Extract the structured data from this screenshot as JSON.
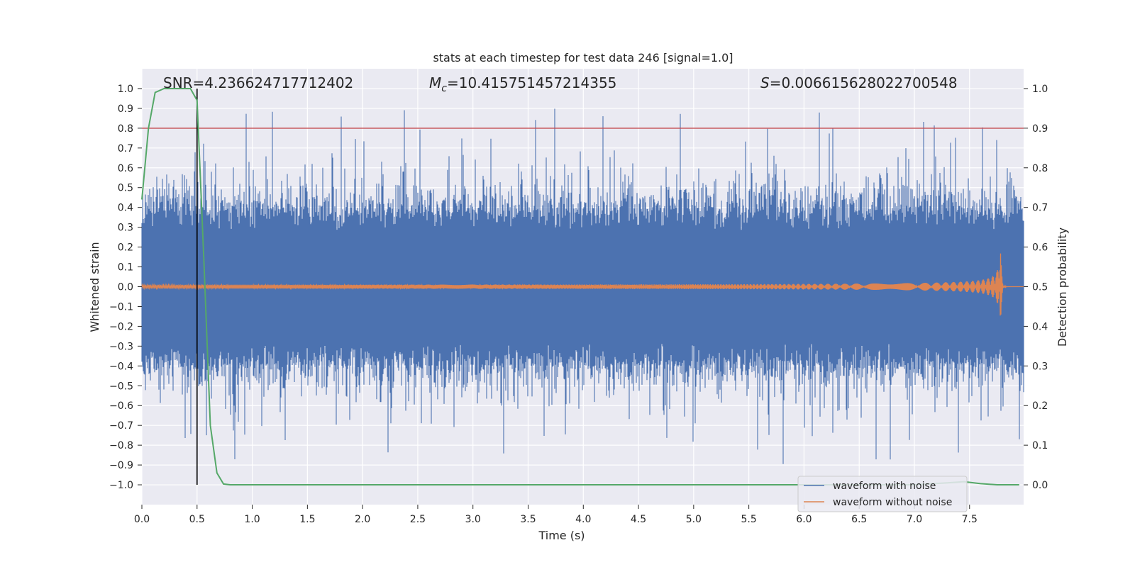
{
  "chart_data": {
    "type": "line",
    "title": "stats at each timestep for test data 246 [signal=1.0]",
    "xlabel": "Time (s)",
    "ylabel": "Whitened strain",
    "y2label": "Detection probability",
    "xlim": [
      0.0,
      7.99
    ],
    "ylim": [
      -1.1,
      1.1
    ],
    "y2lim": [
      -0.05,
      1.05
    ],
    "xticks": [
      "0.0",
      "0.5",
      "1.0",
      "1.5",
      "2.0",
      "2.5",
      "3.0",
      "3.5",
      "4.0",
      "4.5",
      "5.0",
      "5.5",
      "6.0",
      "6.5",
      "7.0",
      "7.5"
    ],
    "yticks": [
      "1.0",
      "0.9",
      "0.8",
      "0.7",
      "0.6",
      "0.5",
      "0.4",
      "0.3",
      "0.2",
      "0.1",
      "0.0",
      "−0.1",
      "−0.2",
      "−0.3",
      "−0.4",
      "−0.5",
      "−0.6",
      "−0.7",
      "−0.8",
      "−0.9",
      "−1.0"
    ],
    "y2ticks": [
      "1.0",
      "0.9",
      "0.8",
      "0.7",
      "0.6",
      "0.5",
      "0.4",
      "0.3",
      "0.2",
      "0.1",
      "0.0"
    ],
    "annotations": {
      "snr": "SNR=4.236624717712402",
      "mc_symbol": "M",
      "mc_sub": "c",
      "mc_value": "=10.415751457214355",
      "s_symbol": "S",
      "s_value": "=0.006615628022700548"
    },
    "threshold": {
      "value": 0.9,
      "axis": "right",
      "color": "#c44e52"
    },
    "vertical_marker": {
      "x": 0.5,
      "color": "#000000"
    },
    "colors": {
      "noise": "#4c72b0",
      "clean": "#dd8452",
      "probability": "#55a868",
      "background": "#eaeaf2",
      "grid": "#ffffff"
    },
    "series": [
      {
        "name": "waveform with noise",
        "note": "dense Gaussian-like noise, envelope approx ±0.5, peaks to ±1.0",
        "noise_amplitude": 0.28
      },
      {
        "name": "waveform without noise",
        "note": "chirp: amplitude grows from ~0.005 to ~0.23 at merger near t=7.78 s",
        "merger_time": 7.78,
        "peak_amplitude": 0.23
      },
      {
        "name": "detection probability",
        "axis": "right",
        "x": [
          0.0,
          0.06,
          0.12,
          0.2,
          0.3,
          0.38,
          0.44,
          0.5,
          0.56,
          0.62,
          0.68,
          0.74,
          0.8,
          1.0,
          2.0,
          4.0,
          6.0,
          7.0,
          7.3,
          7.45,
          7.6,
          7.75,
          7.95
        ],
        "y": [
          0.72,
          0.9,
          0.99,
          1.0,
          1.0,
          1.0,
          1.0,
          0.97,
          0.58,
          0.15,
          0.03,
          0.002,
          0.0,
          0.0,
          0.0,
          0.0,
          0.0,
          0.0,
          0.005,
          0.008,
          0.003,
          0.0,
          0.0
        ]
      }
    ],
    "legend": {
      "position": "lower right",
      "entries": [
        "waveform with noise",
        "waveform without noise"
      ]
    }
  }
}
